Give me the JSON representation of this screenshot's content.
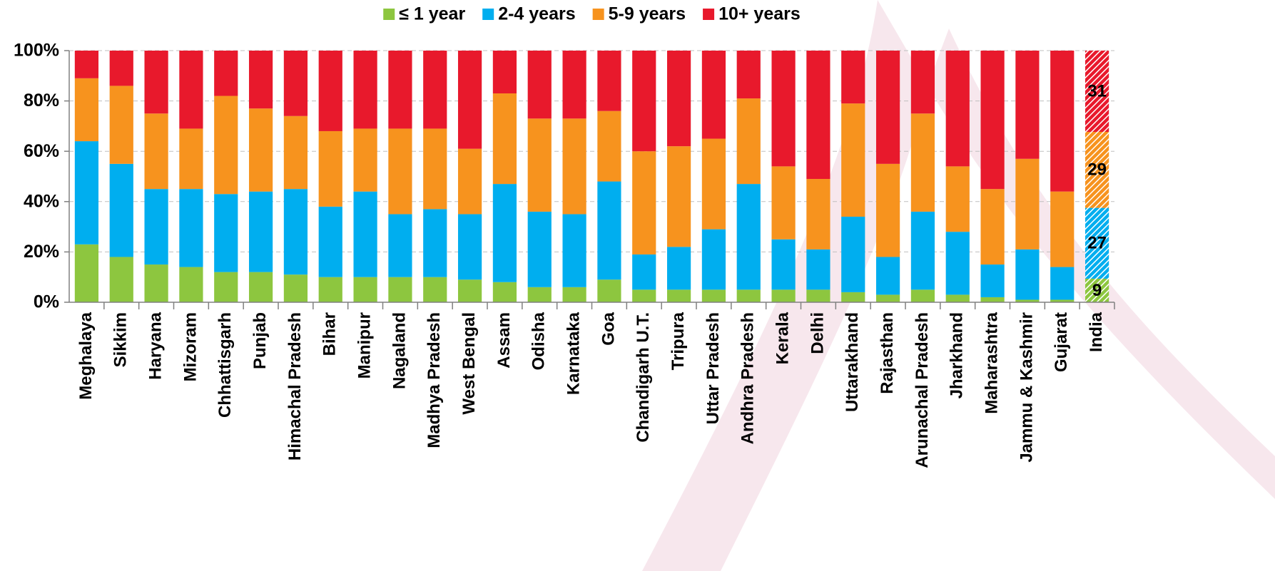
{
  "chart_data": {
    "type": "bar",
    "stack": "percent",
    "highlight_last": true,
    "grid": true,
    "legend": "top",
    "categories": [
      "Meghalaya",
      "Sikkim",
      "Haryana",
      "Mizoram",
      "Chhattisgarh",
      "Punjab",
      "Himachal Pradesh",
      "Bihar",
      "Manipur",
      "Nagaland",
      "Madhya Pradesh",
      "West Bengal",
      "Assam",
      "Odisha",
      "Karnataka",
      "Goa",
      "Chandigarh U.T.",
      "Tripura",
      "Uttar Pradesh",
      "Andhra Pradesh",
      "Kerala",
      "Delhi",
      "Uttarakhand",
      "Rajasthan",
      "Arunachal Pradesh",
      "Jharkhand",
      "Maharashtra",
      "Jammu & Kashmir",
      "Gujarat",
      "India"
    ],
    "series": [
      {
        "name": "≤ 1 year",
        "color": "#8dc63f",
        "values": [
          23,
          18,
          15,
          14,
          12,
          12,
          11,
          10,
          10,
          10,
          10,
          9,
          8,
          6,
          6,
          9,
          5,
          5,
          5,
          5,
          5,
          5,
          4,
          3,
          5,
          3,
          2,
          1,
          1,
          9
        ]
      },
      {
        "name": "2-4 years",
        "color": "#00aeef",
        "values": [
          41,
          37,
          30,
          31,
          31,
          32,
          34,
          28,
          34,
          25,
          27,
          26,
          39,
          30,
          29,
          39,
          14,
          17,
          24,
          42,
          20,
          16,
          30,
          15,
          31,
          25,
          13,
          20,
          13,
          27
        ]
      },
      {
        "name": "5-9 years",
        "color": "#f7931e",
        "values": [
          25,
          31,
          30,
          24,
          39,
          33,
          29,
          30,
          25,
          34,
          32,
          26,
          36,
          37,
          38,
          28,
          41,
          40,
          36,
          34,
          29,
          28,
          45,
          37,
          39,
          26,
          30,
          36,
          30,
          29
        ]
      },
      {
        "name": "10+ years",
        "color": "#e8192c",
        "values": [
          11,
          14,
          25,
          31,
          18,
          23,
          26,
          32,
          31,
          31,
          31,
          39,
          17,
          27,
          27,
          24,
          40,
          38,
          35,
          19,
          46,
          51,
          21,
          45,
          25,
          46,
          55,
          43,
          56,
          31
        ]
      }
    ],
    "ylim": [
      0,
      100
    ],
    "yticks": [
      {
        "value": 0,
        "label": "0%"
      },
      {
        "value": 20,
        "label": "20%"
      },
      {
        "value": 40,
        "label": "40%"
      },
      {
        "value": 60,
        "label": "60%"
      },
      {
        "value": 80,
        "label": "80%"
      },
      {
        "value": 100,
        "label": "100%"
      }
    ]
  }
}
